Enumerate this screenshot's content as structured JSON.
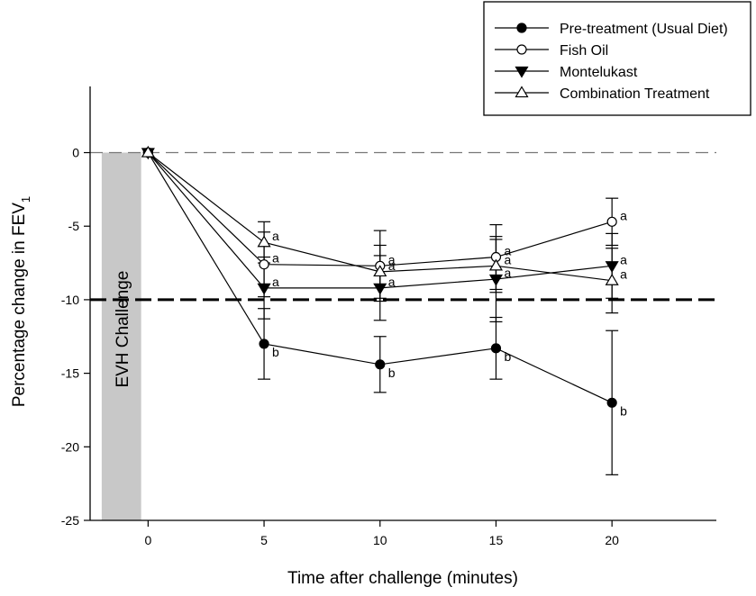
{
  "chart_data": {
    "type": "line",
    "xlabel": "Time after challenge (minutes)",
    "ylabel": "Percentage change in FEV",
    "ylabel_subscript": "1",
    "xlim": [
      -2.5,
      24.5
    ],
    "ylim": [
      -25,
      4.5
    ],
    "x_ticks": [
      0,
      5,
      10,
      15,
      20
    ],
    "y_ticks": [
      0,
      -5,
      -10,
      -15,
      -20,
      -25
    ],
    "x": [
      0,
      5,
      10,
      15,
      20
    ],
    "reference_lines": [
      {
        "y": 0,
        "style": "thin-dashed",
        "color": "#777777"
      },
      {
        "y": -10,
        "style": "bold-dashed",
        "color": "#000000"
      }
    ],
    "shaded_band": {
      "x_range": [
        -2,
        -0.3
      ],
      "label": "EVH Challenge",
      "color": "#c8c8c8"
    },
    "legend_position": "top-right",
    "series": [
      {
        "name": "Pre-treatment (Usual Diet)",
        "marker": "circle-filled",
        "values": [
          0,
          -13.0,
          -14.4,
          -13.3,
          -17.0
        ],
        "errors": [
          0,
          2.4,
          1.9,
          2.1,
          4.9
        ],
        "letters": [
          "",
          "b",
          "b",
          "b",
          "b"
        ]
      },
      {
        "name": "Fish Oil",
        "marker": "circle-open",
        "values": [
          0,
          -7.6,
          -7.7,
          -7.1,
          -4.7
        ],
        "errors": [
          0,
          2.2,
          2.4,
          2.2,
          1.6
        ],
        "letters": [
          "",
          "a",
          "a",
          "a",
          "a"
        ]
      },
      {
        "name": "Montelukast",
        "marker": "triangle-down-filled",
        "values": [
          0,
          -9.2,
          -9.2,
          -8.6,
          -7.7
        ],
        "errors": [
          0,
          2.1,
          2.2,
          2.9,
          2.2
        ],
        "letters": [
          "",
          "a",
          "a",
          "a",
          "a"
        ]
      },
      {
        "name": "Combination Treatment",
        "marker": "triangle-up-open",
        "values": [
          0,
          -6.1,
          -8.1,
          -7.7,
          -8.7
        ],
        "errors": [
          0,
          1.4,
          1.8,
          1.8,
          2.2
        ],
        "letters": [
          "",
          "a",
          "a",
          "a",
          "a"
        ]
      }
    ]
  }
}
